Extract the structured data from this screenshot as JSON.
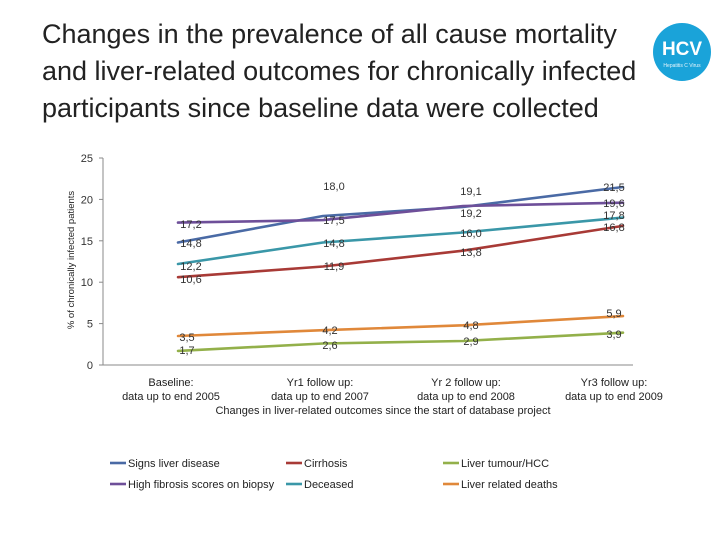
{
  "slide": {
    "title": "Changes in the prevalence of all cause mortality and liver-related outcomes for chronically infected participants since baseline data were collected"
  },
  "logo": {
    "text": "HCV",
    "subtext": "Hepatitis C Virus",
    "color": "#1aa3d9"
  },
  "chart_data": {
    "type": "line",
    "title": "",
    "xlabel": "Changes in liver-related outcomes since the start of database project",
    "ylabel": "% of chronically infected patients",
    "ylim": [
      0,
      25
    ],
    "yticks": [
      "0",
      "5",
      "10",
      "15",
      "20",
      "25"
    ],
    "categories": [
      [
        "Baseline:",
        "data up to end 2005"
      ],
      [
        "Yr1 follow up:",
        "data up to end 2007"
      ],
      [
        "Yr 2 follow up:",
        "data up to end 2008"
      ],
      [
        "Yr3 follow up:",
        "data up to end 2009"
      ]
    ],
    "grid": false,
    "legend_position": "bottom",
    "series": [
      {
        "name": "Signs liver disease",
        "color": "#4a6aa5",
        "values": [
          14.8,
          18.0,
          19.1,
          21.5
        ],
        "labels": [
          "14,8",
          "18,0",
          "19,1",
          "21,5"
        ]
      },
      {
        "name": "Cirrhosis",
        "color": "#a83a36",
        "values": [
          10.6,
          11.9,
          13.8,
          16.8
        ],
        "labels": [
          "10,6",
          "11,9",
          "13,8",
          "16,8"
        ]
      },
      {
        "name": "Liver tumour/HCC",
        "color": "#93b04a",
        "values": [
          1.7,
          2.6,
          2.9,
          3.9
        ],
        "labels": [
          "1,7",
          "2,6",
          "2,9",
          "3,9"
        ]
      },
      {
        "name": "High fibrosis scores on biopsy",
        "color": "#6e4f99",
        "values": [
          17.2,
          17.5,
          19.2,
          19.6
        ],
        "labels": [
          "17,2",
          "17,5",
          "19,2",
          "19,6"
        ]
      },
      {
        "name": "Deceased",
        "color": "#3a97a8",
        "values": [
          12.2,
          14.8,
          16.0,
          17.8
        ],
        "labels": [
          "12,2",
          "14,8",
          "16,0",
          "17,8"
        ]
      },
      {
        "name": "Liver related deaths",
        "color": "#e0883a",
        "values": [
          3.5,
          4.2,
          4.8,
          5.9
        ],
        "labels": [
          "3,5",
          "4,2",
          "4,8",
          "5,9"
        ]
      }
    ]
  }
}
